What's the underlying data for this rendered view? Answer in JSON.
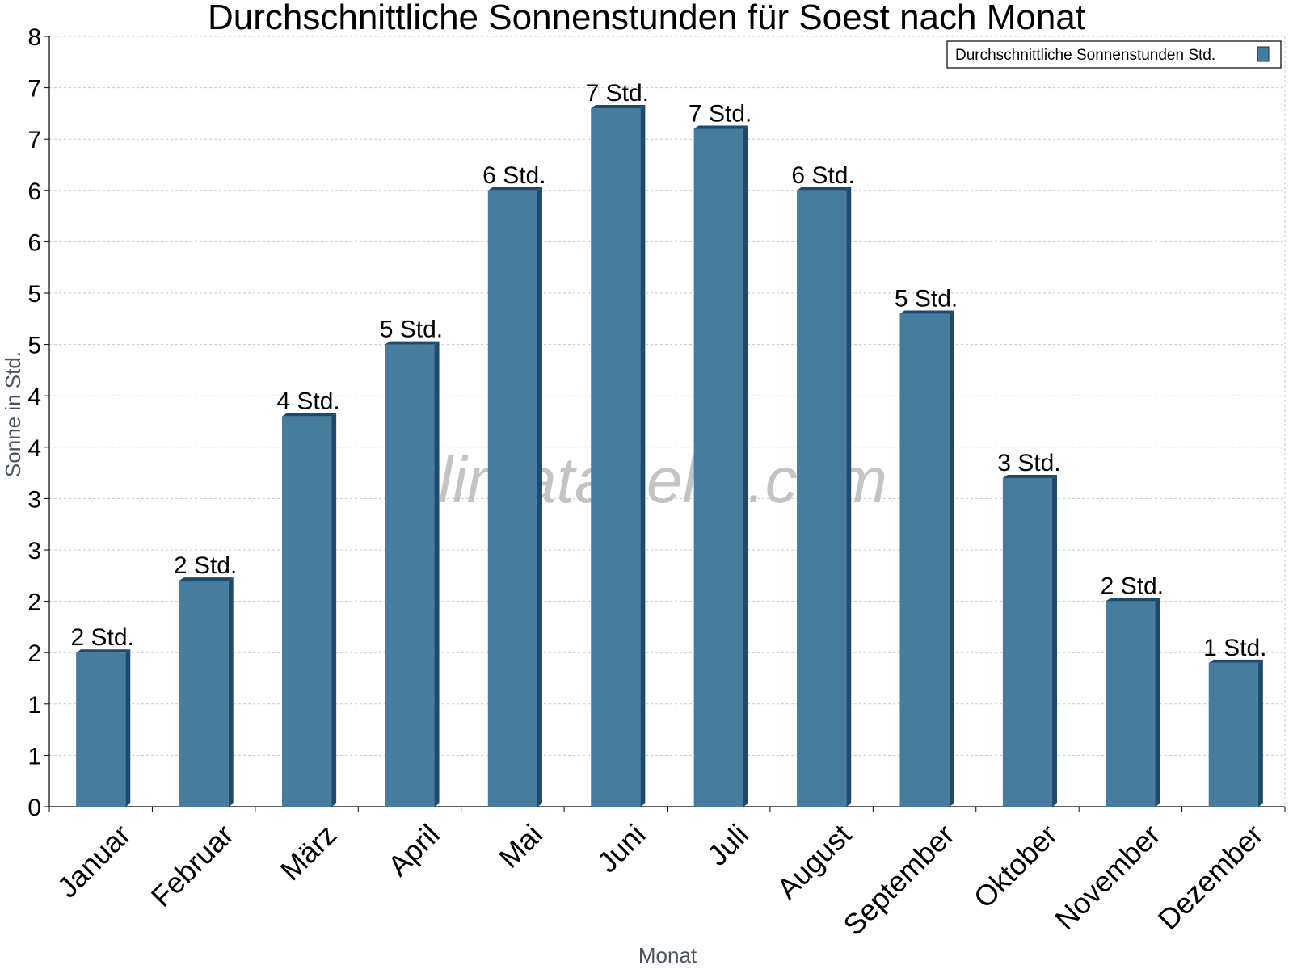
{
  "chart_data": {
    "type": "bar",
    "title": "Durchschnittliche Sonnenstunden für Soest nach Monat",
    "xlabel": "Monat",
    "ylabel": "Sonne in Std.",
    "categories": [
      "Januar",
      "Februar",
      "März",
      "April",
      "Mai",
      "Juni",
      "Juli",
      "August",
      "September",
      "Oktober",
      "November",
      "Dezember"
    ],
    "series": [
      {
        "name": "Durchschnittliche Sonnenstunden Std.",
        "values": [
          1.5,
          2.2,
          3.8,
          4.5,
          6.0,
          6.8,
          6.6,
          6.0,
          4.8,
          3.2,
          2.0,
          1.4
        ],
        "labels": [
          "2 Std.",
          "2 Std.",
          "4 Std.",
          "5 Std.",
          "6 Std.",
          "7 Std.",
          "7 Std.",
          "6 Std.",
          "5 Std.",
          "3 Std.",
          "2 Std.",
          "1 Std."
        ]
      }
    ],
    "ylim": [
      0,
      7.5
    ],
    "yticks": [
      0,
      0.5,
      1,
      1.5,
      2,
      2.5,
      3,
      3.5,
      4,
      4.5,
      5,
      5.5,
      6,
      6.5,
      7,
      7.5
    ],
    "ytick_labels": [
      "0",
      "1",
      "1",
      "2",
      "2",
      "3",
      "3",
      "4",
      "4",
      "5",
      "5",
      "6",
      "6",
      "7",
      "7",
      "8"
    ],
    "grid": true,
    "legend_position": "top-right",
    "watermark": "klimatabelle.com",
    "colors": {
      "bar": "#467c9e",
      "bar_dark": "#1e4a6c",
      "grid": "#c8c8c8"
    }
  }
}
